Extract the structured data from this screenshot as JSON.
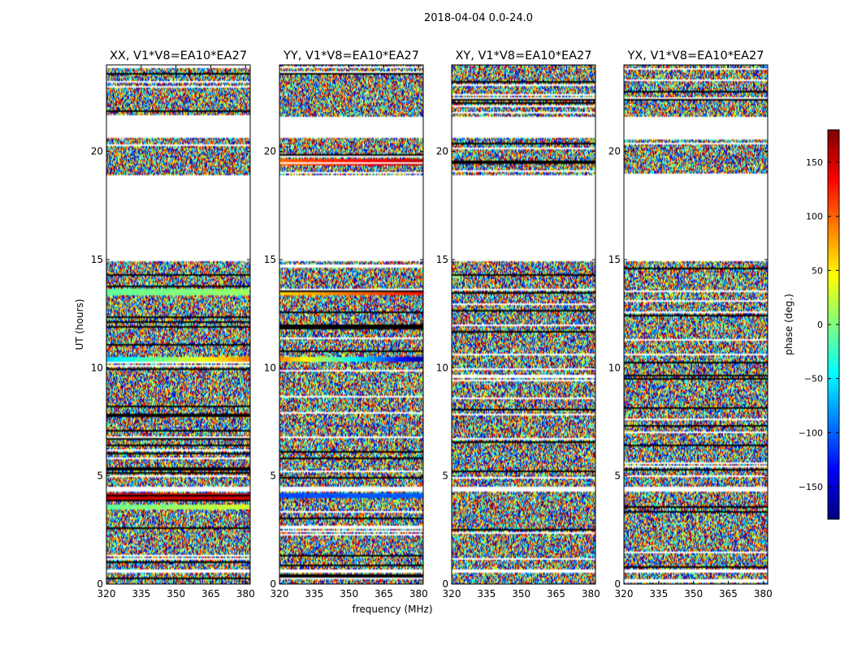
{
  "figure": {
    "suptitle": "2018-04-04 0.0-24.0",
    "xlabel": "frequency (MHz)",
    "ylabel": "UT (hours)",
    "colorbar_label": "phase (deg.)",
    "colorbar_ticks": [
      "150",
      "100",
      "50",
      "0",
      "−50",
      "−100",
      "−150"
    ]
  },
  "chart_data": [
    {
      "type": "heatmap",
      "title": "XX, V1*V8=EA10*EA27",
      "xlabel": "frequency (MHz)",
      "ylabel": "UT (hours)",
      "xlim": [
        320,
        382
      ],
      "ylim": [
        0,
        24
      ],
      "x_ticks": [
        320,
        335,
        350,
        365,
        380
      ],
      "y_ticks": [
        0,
        5,
        10,
        15,
        20
      ],
      "colorbar": {
        "label": "phase (deg.)",
        "range": [
          -180,
          180
        ],
        "colormap": "jet"
      },
      "time_gaps_hours": [
        [
          20.6,
          21.6
        ],
        [
          14.9,
          18.9
        ],
        [
          4.3,
          4.5
        ],
        [
          0.5,
          0.7
        ]
      ],
      "coherent_bands": [
        {
          "ut": 10.4,
          "phase_start_deg": -60,
          "phase_end_deg": 90
        },
        {
          "ut": 4.05,
          "phase_start_deg": 150,
          "phase_end_deg": 150
        },
        {
          "ut": 3.55,
          "phase_start_deg": -10,
          "phase_end_deg": 30
        },
        {
          "ut": 13.5,
          "phase_start_deg": -10,
          "phase_end_deg": 10
        }
      ]
    },
    {
      "type": "heatmap",
      "title": "YY, V1*V8=EA10*EA27",
      "xlabel": "frequency (MHz)",
      "ylabel": "UT (hours)",
      "xlim": [
        320,
        382
      ],
      "ylim": [
        0,
        24
      ],
      "x_ticks": [
        320,
        335,
        350,
        365,
        380
      ],
      "y_ticks": [
        0,
        5,
        10,
        15,
        20
      ],
      "colorbar": {
        "label": "phase (deg.)",
        "range": [
          -180,
          180
        ],
        "colormap": "jet"
      },
      "time_gaps_hours": [
        [
          20.6,
          21.6
        ],
        [
          14.9,
          18.9
        ],
        [
          4.3,
          4.5
        ],
        [
          0.5,
          0.7
        ]
      ],
      "coherent_bands": [
        {
          "ut": 10.4,
          "phase_start_deg": 90,
          "phase_end_deg": -170
        },
        {
          "ut": 4.1,
          "phase_start_deg": -110,
          "phase_end_deg": -100
        },
        {
          "ut": 13.5,
          "phase_start_deg": 60,
          "phase_end_deg": 130
        },
        {
          "ut": 19.5,
          "phase_start_deg": 100,
          "phase_end_deg": 160
        }
      ]
    },
    {
      "type": "heatmap",
      "title": "XY, V1*V8=EA10*EA27",
      "xlabel": "frequency (MHz)",
      "ylabel": "UT (hours)",
      "xlim": [
        320,
        382
      ],
      "ylim": [
        0,
        24
      ],
      "x_ticks": [
        320,
        335,
        350,
        365,
        380
      ],
      "y_ticks": [
        0,
        5,
        10,
        15,
        20
      ],
      "colorbar": {
        "label": "phase (deg.)",
        "range": [
          -180,
          180
        ],
        "colormap": "jet"
      },
      "time_gaps_hours": [
        [
          20.6,
          21.6
        ],
        [
          14.9,
          18.9
        ],
        [
          4.3,
          4.5
        ],
        [
          0.5,
          0.7
        ]
      ],
      "coherent_bands": []
    },
    {
      "type": "heatmap",
      "title": "YX, V1*V8=EA10*EA27",
      "xlabel": "frequency (MHz)",
      "ylabel": "UT (hours)",
      "xlim": [
        320,
        382
      ],
      "ylim": [
        0,
        24
      ],
      "x_ticks": [
        320,
        335,
        350,
        365,
        380
      ],
      "y_ticks": [
        0,
        5,
        10,
        15,
        20
      ],
      "colorbar": {
        "label": "phase (deg.)",
        "range": [
          -180,
          180
        ],
        "colormap": "jet"
      },
      "time_gaps_hours": [
        [
          20.6,
          21.6
        ],
        [
          14.9,
          18.9
        ],
        [
          4.3,
          4.5
        ],
        [
          0.5,
          0.7
        ]
      ],
      "coherent_bands": []
    }
  ]
}
